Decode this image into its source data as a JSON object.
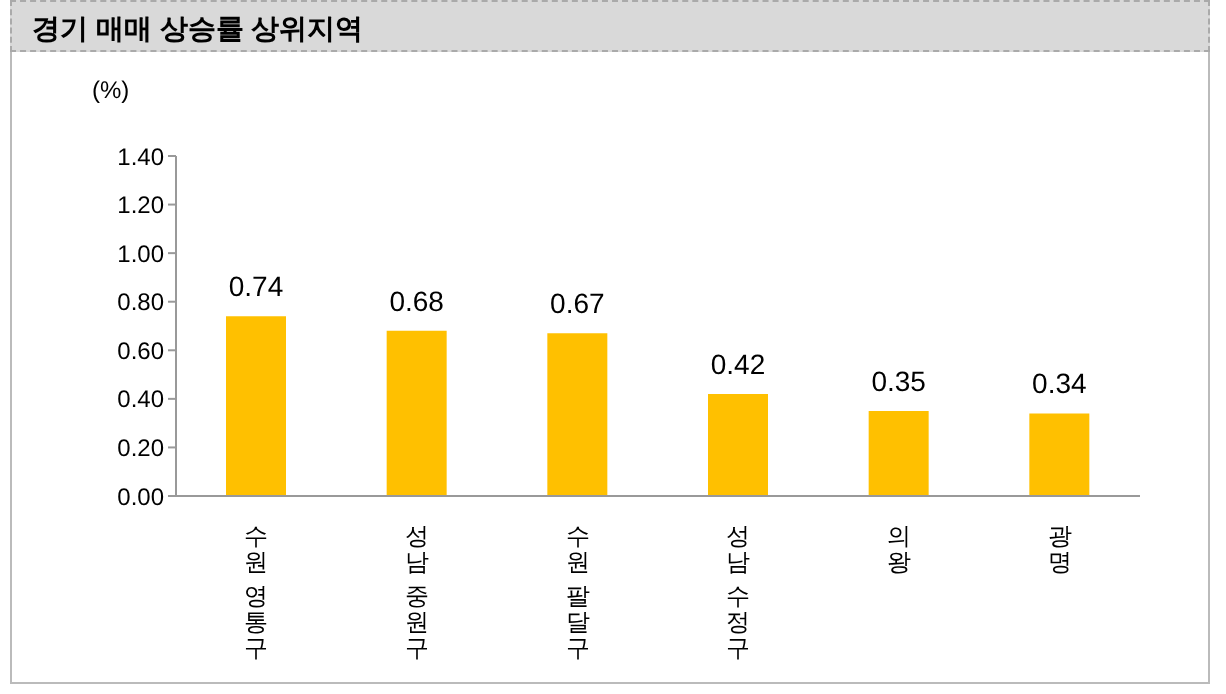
{
  "chart_data": {
    "type": "bar",
    "title": "경기 매매 상승률 상위지역",
    "ylabel": "(%)",
    "categories": [
      "수원 영통구",
      "성남 중원구",
      "수원 팔달구",
      "성남 수정구",
      "의왕",
      "광명"
    ],
    "values": [
      0.74,
      0.68,
      0.67,
      0.42,
      0.35,
      0.34
    ],
    "color": "#ffc000",
    "ylim": [
      0,
      1.4
    ],
    "yticks": [
      {
        "value": 0,
        "label": "0.00"
      },
      {
        "value": 0.2,
        "label": "0.20"
      },
      {
        "value": 0.4,
        "label": "0.40"
      },
      {
        "value": 0.6,
        "label": "0.60"
      },
      {
        "value": 0.8,
        "label": "0.80"
      },
      {
        "value": 1,
        "label": "1.00"
      },
      {
        "value": 1.2,
        "label": "1.20"
      },
      {
        "value": 1.4,
        "label": "1.40"
      }
    ],
    "data_labels": true,
    "grid": false
  }
}
